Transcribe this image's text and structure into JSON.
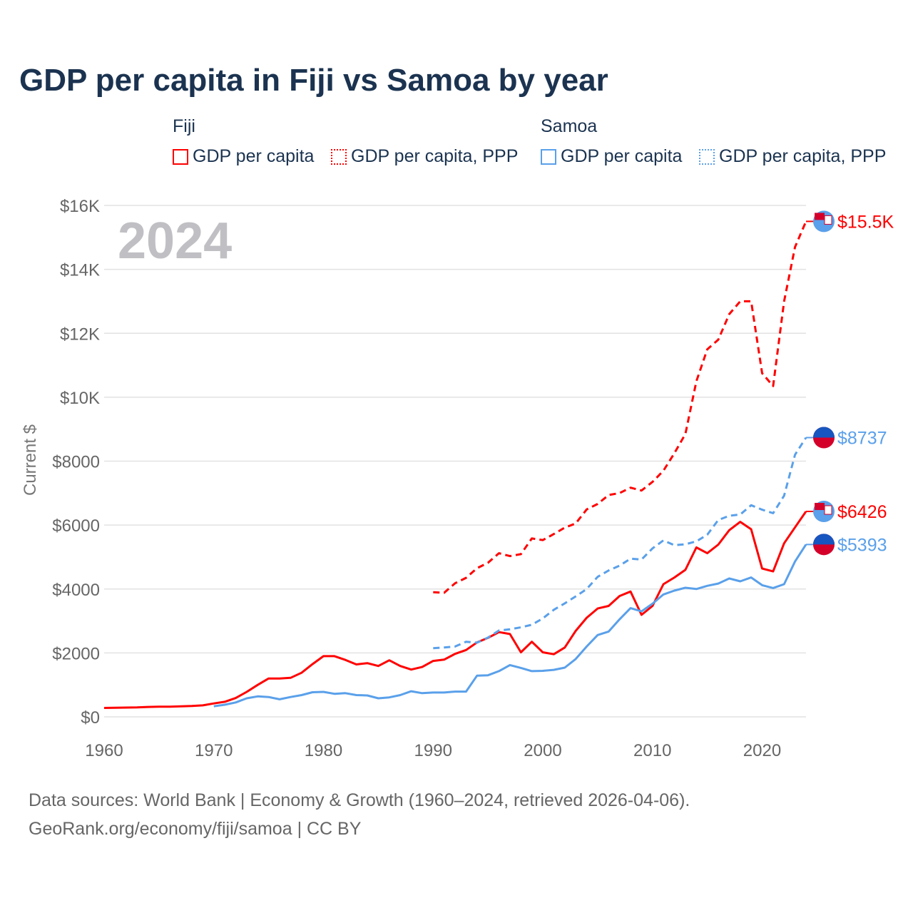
{
  "title": "GDP per capita in Fiji vs Samoa by year",
  "legend": {
    "fiji": "Fiji",
    "samoa": "Samoa",
    "gdp": "GDP per capita",
    "ppp": "GDP per capita, PPP"
  },
  "year_watermark": "2024",
  "footer": {
    "line1": "Data sources: World Bank | Economy & Growth (1960–2024, retrieved 2026-04-06).",
    "line2": "GeoRank.org/economy/fiji/samoa | CC BY"
  },
  "chart_data": {
    "type": "line",
    "ylabel": "Current $",
    "xlim": [
      1960,
      2024
    ],
    "ylim": [
      0,
      16000
    ],
    "x_ticks": [
      1960,
      1970,
      1980,
      1990,
      2000,
      2010,
      2020
    ],
    "y_ticks": [
      {
        "v": 0,
        "l": "$0"
      },
      {
        "v": 2000,
        "l": "$2000"
      },
      {
        "v": 4000,
        "l": "$4000"
      },
      {
        "v": 6000,
        "l": "$6000"
      },
      {
        "v": 8000,
        "l": "$8000"
      },
      {
        "v": 10000,
        "l": "$10K"
      },
      {
        "v": 12000,
        "l": "$12K"
      },
      {
        "v": 14000,
        "l": "$14K"
      },
      {
        "v": 16000,
        "l": "$16K"
      }
    ],
    "colors": {
      "fiji": "#ff0000",
      "samoa": "#5aa0ea"
    },
    "series": [
      {
        "name": "Fiji GDP per capita",
        "country": "fiji",
        "dashed": false,
        "start": 1960,
        "end_label": "$6426",
        "values": [
          280,
          285,
          290,
          295,
          310,
          320,
          320,
          330,
          340,
          360,
          420,
          470,
          590,
          780,
          1000,
          1200,
          1200,
          1220,
          1380,
          1650,
          1900,
          1900,
          1780,
          1640,
          1680,
          1590,
          1770,
          1590,
          1480,
          1560,
          1750,
          1790,
          1970,
          2090,
          2330,
          2470,
          2650,
          2590,
          2020,
          2350,
          2020,
          1960,
          2170,
          2690,
          3100,
          3390,
          3470,
          3780,
          3920,
          3190,
          3470,
          4150,
          4360,
          4600,
          5300,
          5120,
          5390,
          5840,
          6100,
          5870,
          4640,
          4550,
          5430,
          5930,
          6426
        ]
      },
      {
        "name": "Fiji GDP per capita, PPP",
        "country": "fiji",
        "dashed": true,
        "start": 1990,
        "end_label": "$15.5K",
        "values": [
          3900,
          3880,
          4180,
          4350,
          4650,
          4820,
          5120,
          5030,
          5090,
          5580,
          5530,
          5720,
          5920,
          6050,
          6490,
          6660,
          6940,
          7000,
          7170,
          7080,
          7350,
          7700,
          8250,
          8850,
          10500,
          11500,
          11800,
          12600,
          13000,
          13000,
          10750,
          10350,
          13000,
          14700,
          15500
        ]
      },
      {
        "name": "Samoa GDP per capita",
        "country": "samoa",
        "dashed": false,
        "start": 1970,
        "end_label": "$5393",
        "values": [
          330,
          380,
          450,
          580,
          640,
          620,
          550,
          620,
          680,
          770,
          780,
          720,
          740,
          680,
          670,
          580,
          610,
          680,
          800,
          740,
          760,
          760,
          790,
          790,
          1290,
          1300,
          1430,
          1620,
          1530,
          1430,
          1440,
          1470,
          1540,
          1810,
          2200,
          2560,
          2670,
          3050,
          3400,
          3300,
          3540,
          3830,
          3950,
          4040,
          4000,
          4100,
          4170,
          4330,
          4240,
          4360,
          4120,
          4030,
          4150,
          4860,
          5393
        ]
      },
      {
        "name": "Samoa GDP per capita, PPP",
        "country": "samoa",
        "dashed": true,
        "start": 1990,
        "end_label": "$8737",
        "values": [
          2150,
          2170,
          2200,
          2350,
          2320,
          2480,
          2700,
          2740,
          2800,
          2880,
          3080,
          3350,
          3550,
          3770,
          4000,
          4380,
          4580,
          4730,
          4950,
          4920,
          5270,
          5520,
          5370,
          5400,
          5490,
          5700,
          6160,
          6290,
          6330,
          6620,
          6480,
          6370,
          6920,
          8200,
          8737
        ]
      }
    ]
  }
}
